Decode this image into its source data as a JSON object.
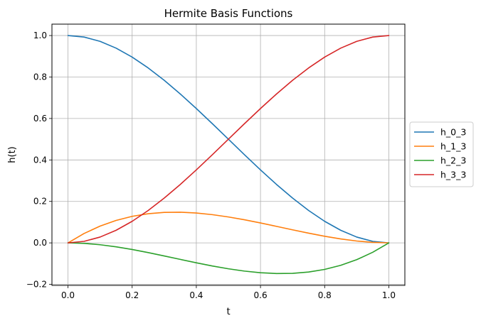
{
  "chart_data": {
    "type": "line",
    "title": "Hermite Basis Functions",
    "xlabel": "t",
    "ylabel": "h(t)",
    "xlim": [
      -0.05,
      1.05
    ],
    "ylim": [
      -0.205,
      1.055
    ],
    "x_ticks": [
      0.0,
      0.2,
      0.4,
      0.6,
      0.8,
      1.0
    ],
    "x_tick_labels": [
      "0.0",
      "0.2",
      "0.4",
      "0.6",
      "0.8",
      "1.0"
    ],
    "y_ticks": [
      -0.2,
      0.0,
      0.2,
      0.4,
      0.6,
      0.8,
      1.0
    ],
    "y_tick_labels": [
      "−0.2",
      "0.0",
      "0.2",
      "0.4",
      "0.6",
      "0.8",
      "1.0"
    ],
    "grid": true,
    "legend_position": "outside-right",
    "x": [
      0.0,
      0.05,
      0.1,
      0.15,
      0.2,
      0.25,
      0.3,
      0.35,
      0.4,
      0.45,
      0.5,
      0.55,
      0.6,
      0.65,
      0.7,
      0.75,
      0.8,
      0.85,
      0.9,
      0.95,
      1.0
    ],
    "series": [
      {
        "name": "h_0_3",
        "color": "#1f77b4",
        "values": [
          1.0,
          0.99275,
          0.972,
          0.93925,
          0.896,
          0.84375,
          0.784,
          0.71825,
          0.648,
          0.57475,
          0.5,
          0.42525,
          0.352,
          0.28175,
          0.216,
          0.15625,
          0.104,
          0.06075,
          0.028,
          0.00725,
          0.0
        ]
      },
      {
        "name": "h_1_3",
        "color": "#ff7f0e",
        "values": [
          0.0,
          0.045125,
          0.081,
          0.108375,
          0.128,
          0.140625,
          0.147,
          0.147875,
          0.144,
          0.136125,
          0.125,
          0.111375,
          0.096,
          0.079625,
          0.063,
          0.046875,
          0.032,
          0.019125,
          0.009,
          0.002375,
          0.0
        ]
      },
      {
        "name": "h_2_3",
        "color": "#2ca02c",
        "values": [
          0.0,
          -0.002375,
          -0.009,
          -0.019125,
          -0.032,
          -0.046875,
          -0.063,
          -0.079625,
          -0.096,
          -0.111375,
          -0.125,
          -0.136125,
          -0.144,
          -0.147875,
          -0.147,
          -0.140625,
          -0.128,
          -0.108375,
          -0.081,
          -0.045125,
          0.0
        ]
      },
      {
        "name": "h_3_3",
        "color": "#d62728",
        "values": [
          0.0,
          0.00725,
          0.028,
          0.06075,
          0.104,
          0.15625,
          0.216,
          0.28175,
          0.352,
          0.42525,
          0.5,
          0.57475,
          0.648,
          0.71825,
          0.784,
          0.84375,
          0.896,
          0.93925,
          0.972,
          0.99275,
          1.0
        ]
      }
    ]
  }
}
